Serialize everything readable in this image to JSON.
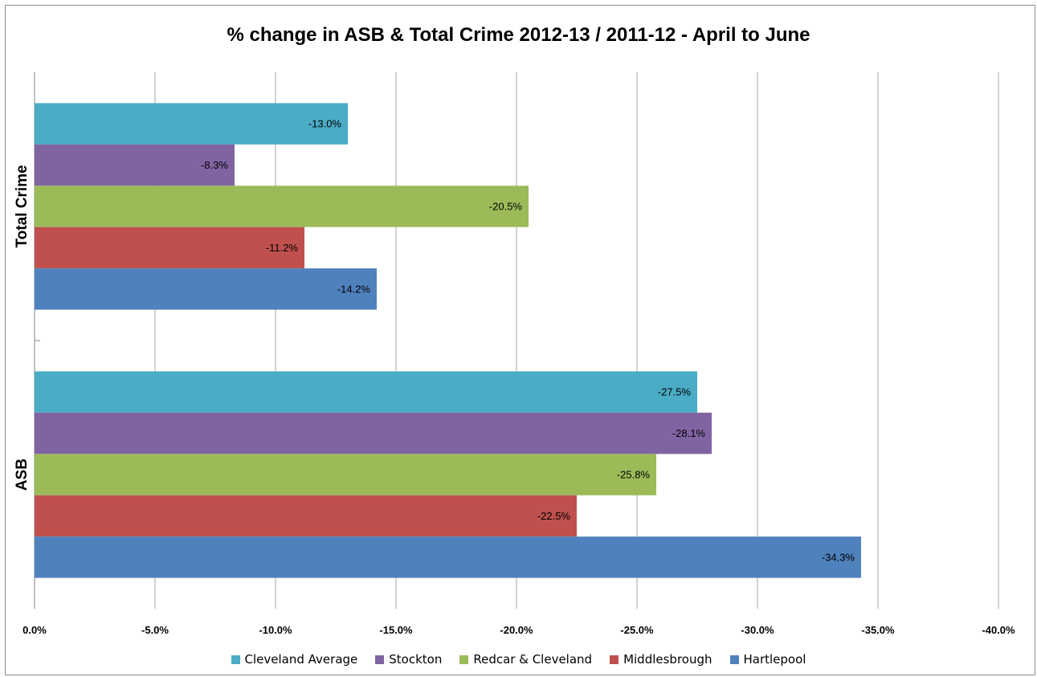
{
  "chart_data": {
    "type": "bar",
    "orientation": "horizontal",
    "title": "% change in ASB & Total Crime 2012-13 / 2011-12 - April to June",
    "categories": [
      "Total Crime",
      "ASB"
    ],
    "xlim": [
      0,
      -40
    ],
    "x_ticks": [
      "0.0%",
      "-5.0%",
      "-10.0%",
      "-15.0%",
      "-20.0%",
      "-25.0%",
      "-30.0%",
      "-35.0%",
      "-40.0%"
    ],
    "x_tick_values": [
      0,
      -5,
      -10,
      -15,
      -20,
      -25,
      -30,
      -35,
      -40
    ],
    "grid": true,
    "legend_position": "bottom",
    "series": [
      {
        "name": "Cleveland Average",
        "color": "#4bacc6",
        "values": [
          -13.0,
          -27.5
        ],
        "labels": [
          "-13.0%",
          "-27.5%"
        ]
      },
      {
        "name": "Stockton",
        "color": "#8064a2",
        "values": [
          -8.3,
          -28.1
        ],
        "labels": [
          "-8.3%",
          "-28.1%"
        ]
      },
      {
        "name": "Redcar & Cleveland",
        "color": "#9bbb59",
        "values": [
          -20.5,
          -25.8
        ],
        "labels": [
          "-20.5%",
          "-25.8%"
        ]
      },
      {
        "name": "Middlesbrough",
        "color": "#c0504d",
        "values": [
          -11.2,
          -22.5
        ],
        "labels": [
          "-11.2%",
          "-22.5%"
        ]
      },
      {
        "name": "Hartlepool",
        "color": "#4f81bd",
        "values": [
          -14.2,
          -34.3
        ],
        "labels": [
          "-14.2%",
          "-34.3%"
        ]
      }
    ]
  }
}
